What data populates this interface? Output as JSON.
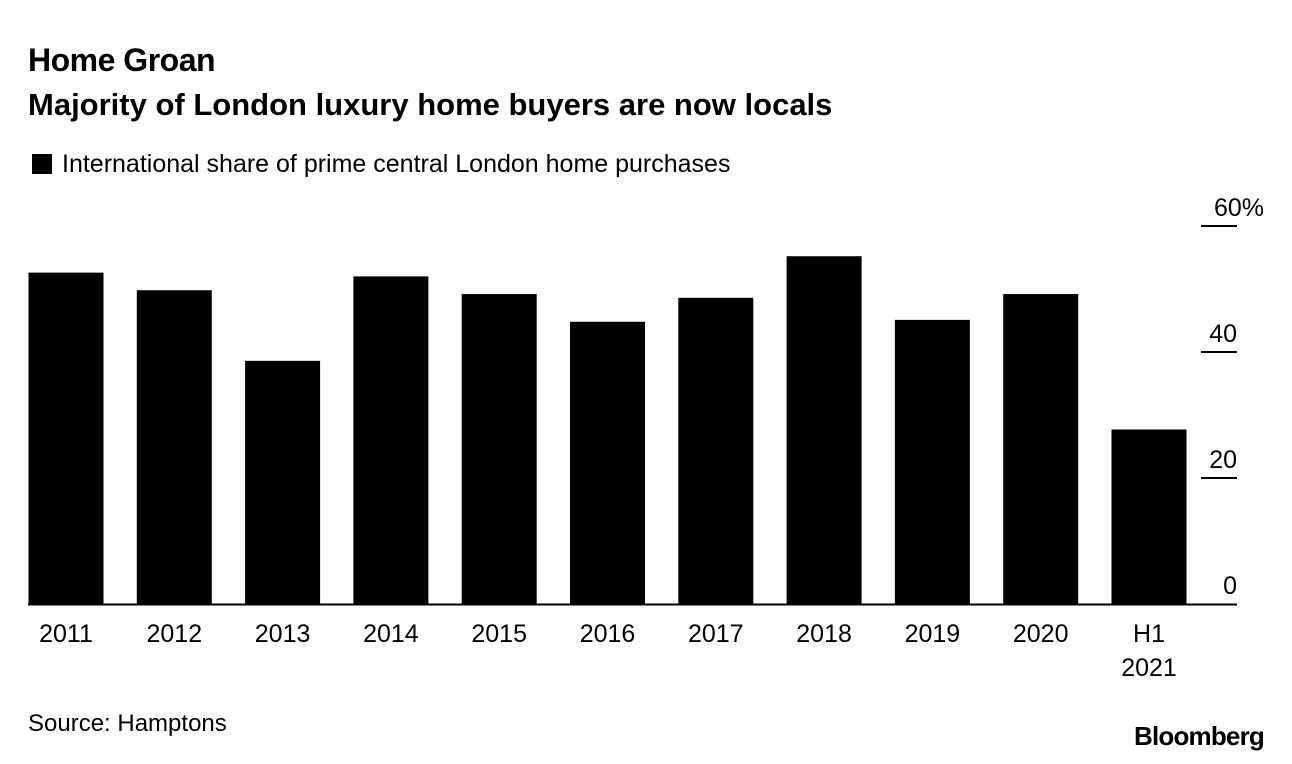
{
  "header": {
    "title": "Home Groan",
    "subtitle": "Majority of London luxury home buyers are now locals"
  },
  "legend": {
    "label": "International share of prime central London home purchases",
    "color": "#000000"
  },
  "footer": {
    "source": "Source: Hamptons",
    "brand": "Bloomberg"
  },
  "chart_data": {
    "type": "bar",
    "title": "Home Groan",
    "subtitle": "Majority of London luxury home buyers are now locals",
    "xlabel": "",
    "ylabel": "",
    "ylim": [
      0,
      60
    ],
    "y_ticks": [
      {
        "value": 0,
        "label": "0"
      },
      {
        "value": 20,
        "label": "20"
      },
      {
        "value": 40,
        "label": "40"
      },
      {
        "value": 60,
        "label": "60%"
      }
    ],
    "y_axis_side": "right",
    "grid": false,
    "legend_position": "top-left",
    "categories": [
      [
        "2011"
      ],
      [
        "2012"
      ],
      [
        "2013"
      ],
      [
        "2014"
      ],
      [
        "2015"
      ],
      [
        "2016"
      ],
      [
        "2017"
      ],
      [
        "2018"
      ],
      [
        "2019"
      ],
      [
        "2020"
      ],
      [
        "H1",
        "2021"
      ]
    ],
    "series": [
      {
        "name": "International share of prime central London home purchases",
        "color": "#000000",
        "values": [
          52.6,
          49.8,
          38.6,
          52.0,
          49.2,
          44.8,
          48.6,
          55.2,
          45.1,
          49.2,
          27.7
        ]
      }
    ]
  }
}
